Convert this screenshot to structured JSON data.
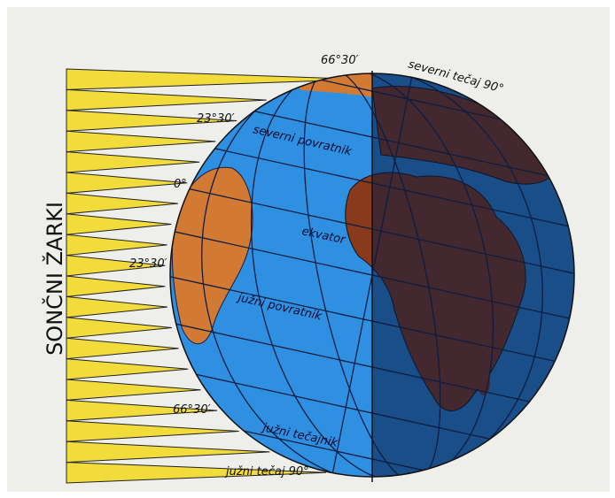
{
  "labels": {
    "side_title": "SONČNI ŽARKI",
    "north_pole_angle": "66°30′",
    "north_pole": "severni tečaj 90°",
    "tropic_north_angle": "23°30′",
    "tropic_north": "severni povratnik",
    "equator_angle": "0°",
    "equator": "ekvator",
    "tropic_south_angle": "23°30′",
    "tropic_south": "južni povratnik",
    "polar_south_angle": "66°30′",
    "polar_south": "južni tečajnik",
    "south_pole": "južni tečaj 90°"
  }
}
